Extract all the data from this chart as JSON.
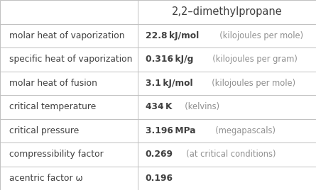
{
  "title": "2,2–dimethylpropane",
  "rows": [
    {
      "label": "molar heat of vaporization",
      "value_bold": "22.8 kJ/mol",
      "value_light": "  (kilojoules per mole)"
    },
    {
      "label": "specific heat of vaporization",
      "value_bold": "0.316 kJ/g",
      "value_light": "  (kilojoules per gram)"
    },
    {
      "label": "molar heat of fusion",
      "value_bold": "3.1 kJ/mol",
      "value_light": "  (kilojoules per mole)"
    },
    {
      "label": "critical temperature",
      "value_bold": "434 K",
      "value_light": "  (kelvins)"
    },
    {
      "label": "critical pressure",
      "value_bold": "3.196 MPa",
      "value_light": "  (megapascals)"
    },
    {
      "label": "compressibility factor",
      "value_bold": "0.269",
      "value_light": "  (at critical conditions)"
    },
    {
      "label": "acentric factor ω",
      "value_bold": "0.196",
      "value_light": ""
    }
  ],
  "col_split": 0.435,
  "border_color": "#c0c0c0",
  "bg_color": "#ffffff",
  "text_color": "#404040",
  "light_text_color": "#909090",
  "label_fontsize": 8.8,
  "value_fontsize": 8.8,
  "title_fontsize": 10.5
}
